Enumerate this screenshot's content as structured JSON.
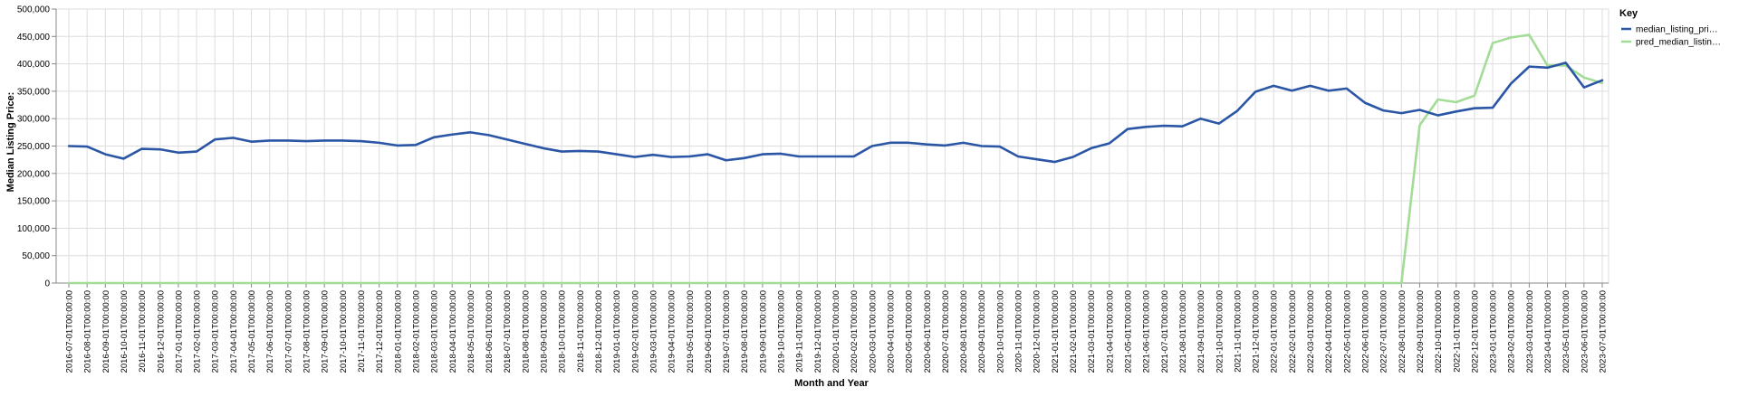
{
  "chart_data": {
    "type": "line",
    "xlabel": "Month and Year",
    "ylabel": "Median Listing Price:",
    "ylim": [
      0,
      500000
    ],
    "y_ticks": [
      "0",
      "50,000",
      "100,000",
      "150,000",
      "200,000",
      "250,000",
      "300,000",
      "350,000",
      "400,000",
      "450,000",
      "500,000"
    ],
    "grid": true,
    "legend_placement": "top-right",
    "legend": {
      "title": "Key",
      "entries": [
        {
          "label": "median_listing_pri…",
          "color": "#2a56a5"
        },
        {
          "label": "pred_median_listin…",
          "color": "#a2dc97"
        }
      ]
    },
    "categories": [
      "2016-07-01T00:00:00",
      "2016-08-01T00:00:00",
      "2016-09-01T00:00:00",
      "2016-10-01T00:00:00",
      "2016-11-01T00:00:00",
      "2016-12-01T00:00:00",
      "2017-01-01T00:00:00",
      "2017-02-01T00:00:00",
      "2017-03-01T00:00:00",
      "2017-04-01T00:00:00",
      "2017-05-01T00:00:00",
      "2017-06-01T00:00:00",
      "2017-07-01T00:00:00",
      "2017-08-01T00:00:00",
      "2017-09-01T00:00:00",
      "2017-10-01T00:00:00",
      "2017-11-01T00:00:00",
      "2017-12-01T00:00:00",
      "2018-01-01T00:00:00",
      "2018-02-01T00:00:00",
      "2018-03-01T00:00:00",
      "2018-04-01T00:00:00",
      "2018-05-01T00:00:00",
      "2018-06-01T00:00:00",
      "2018-07-01T00:00:00",
      "2018-08-01T00:00:00",
      "2018-09-01T00:00:00",
      "2018-10-01T00:00:00",
      "2018-11-01T00:00:00",
      "2018-12-01T00:00:00",
      "2019-01-01T00:00:00",
      "2019-02-01T00:00:00",
      "2019-03-01T00:00:00",
      "2019-04-01T00:00:00",
      "2019-05-01T00:00:00",
      "2019-06-01T00:00:00",
      "2019-07-01T00:00:00",
      "2019-08-01T00:00:00",
      "2019-09-01T00:00:00",
      "2019-10-01T00:00:00",
      "2019-11-01T00:00:00",
      "2019-12-01T00:00:00",
      "2020-01-01T00:00:00",
      "2020-02-01T00:00:00",
      "2020-03-01T00:00:00",
      "2020-04-01T00:00:00",
      "2020-05-01T00:00:00",
      "2020-06-01T00:00:00",
      "2020-07-01T00:00:00",
      "2020-08-01T00:00:00",
      "2020-09-01T00:00:00",
      "2020-10-01T00:00:00",
      "2020-11-01T00:00:00",
      "2020-12-01T00:00:00",
      "2021-01-01T00:00:00",
      "2021-02-01T00:00:00",
      "2021-03-01T00:00:00",
      "2021-04-01T00:00:00",
      "2021-05-01T00:00:00",
      "2021-06-01T00:00:00",
      "2021-07-01T00:00:00",
      "2021-08-01T00:00:00",
      "2021-09-01T00:00:00",
      "2021-10-01T00:00:00",
      "2021-11-01T00:00:00",
      "2021-12-01T00:00:00",
      "2022-01-01T00:00:00",
      "2022-02-01T00:00:00",
      "2022-03-01T00:00:00",
      "2022-04-01T00:00:00",
      "2022-05-01T00:00:00",
      "2022-06-01T00:00:00",
      "2022-07-01T00:00:00",
      "2022-08-01T00:00:00",
      "2022-09-01T00:00:00",
      "2022-10-01T00:00:00",
      "2022-11-01T00:00:00",
      "2022-12-01T00:00:00",
      "2023-01-01T00:00:00",
      "2023-02-01T00:00:00",
      "2023-03-01T00:00:00",
      "2023-04-01T00:00:00",
      "2023-05-01T00:00:00",
      "2023-06-01T00:00:00",
      "2023-07-01T00:00:00"
    ],
    "series": [
      {
        "name": "median_listing_pri…",
        "color": "#2a56a5",
        "values": [
          250000,
          249000,
          235000,
          227000,
          245000,
          244000,
          238000,
          240000,
          262000,
          265000,
          258000,
          260000,
          260000,
          259000,
          260000,
          260000,
          259000,
          256000,
          251000,
          252000,
          266000,
          271000,
          275000,
          270000,
          262000,
          254000,
          246000,
          240000,
          241000,
          240000,
          235000,
          230000,
          234000,
          230000,
          231000,
          235000,
          224000,
          228000,
          235000,
          236000,
          231000,
          231000,
          231000,
          231000,
          250000,
          256000,
          256000,
          253000,
          251000,
          256000,
          250000,
          249000,
          231000,
          226000,
          221000,
          230000,
          246000,
          255000,
          281000,
          285000,
          287000,
          286000,
          300000,
          291000,
          314000,
          349000,
          360000,
          351000,
          360000,
          351000,
          355000,
          329000,
          315000,
          310000,
          316000,
          306000,
          313000,
          319000,
          320000,
          364000,
          395000,
          393000,
          402000,
          357000,
          370000
        ]
      },
      {
        "name": "pred_median_listin…",
        "color": "#a2dc97",
        "values": [
          0,
          0,
          0,
          0,
          0,
          0,
          0,
          0,
          0,
          0,
          0,
          0,
          0,
          0,
          0,
          0,
          0,
          0,
          0,
          0,
          0,
          0,
          0,
          0,
          0,
          0,
          0,
          0,
          0,
          0,
          0,
          0,
          0,
          0,
          0,
          0,
          0,
          0,
          0,
          0,
          0,
          0,
          0,
          0,
          0,
          0,
          0,
          0,
          0,
          0,
          0,
          0,
          0,
          0,
          0,
          0,
          0,
          0,
          0,
          0,
          0,
          0,
          0,
          0,
          0,
          0,
          0,
          0,
          0,
          0,
          0,
          0,
          0,
          0,
          288000,
          335000,
          330000,
          342000,
          438000,
          448000,
          453000,
          397000,
          397000,
          375000,
          365000
        ]
      }
    ]
  }
}
